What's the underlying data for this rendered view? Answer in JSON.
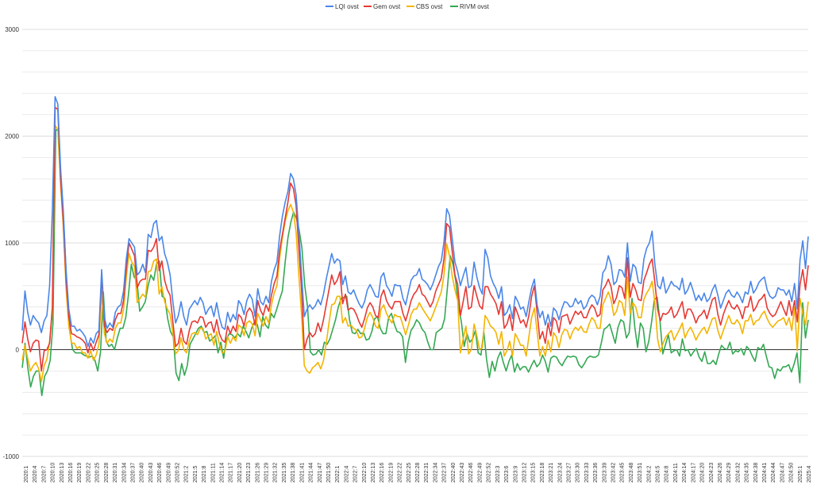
{
  "chart_data": {
    "type": "line",
    "title": "",
    "xlabel": "",
    "ylabel": "",
    "ylim": [
      -1000,
      3000
    ],
    "yticks": [
      -1000,
      0,
      1000,
      2000,
      3000
    ],
    "grid": true,
    "legend_position": "top-center",
    "x_tick_labels": [
      "2020:1",
      "2020:4",
      "2020:7",
      "2020:10",
      "2020:13",
      "2020:16",
      "2020:19",
      "2020:22",
      "2020:25",
      "2020:28",
      "2020:31",
      "2020:34",
      "2020:37",
      "2020:40",
      "2020:43",
      "2020:46",
      "2020:49",
      "2020:52",
      "2021:2",
      "2021:5",
      "2021:8",
      "2021:11",
      "2021:14",
      "2021:17",
      "2021:20",
      "2021:23",
      "2021:26",
      "2021:29",
      "2021:32",
      "2021:35",
      "2021:38",
      "2021:41",
      "2021:44",
      "2021:47",
      "2021:50",
      "2022:1",
      "2022:4",
      "2022:7",
      "2022:10",
      "2022:13",
      "2022:16",
      "2022:19",
      "2022:22",
      "2022:25",
      "2022:28",
      "2022:31",
      "2022:34",
      "2022:37",
      "2022:40",
      "2022:43",
      "2022:46",
      "2022:49",
      "2022:52",
      "2023:3",
      "2023:6",
      "2023:9",
      "2023:12",
      "2023:15",
      "2023:18",
      "2023:21",
      "2023:24",
      "2023:27",
      "2023:30",
      "2023:33",
      "2023:36",
      "2023:39",
      "2023:42",
      "2023:45",
      "2023:48",
      "2023:51",
      "2024:2",
      "2024:5",
      "2024:8",
      "2024:11",
      "2024:14",
      "2024:17",
      "2024:20",
      "2024:23",
      "2024:26",
      "2024:29",
      "2024:32",
      "2024:35",
      "2024:38",
      "2024:41",
      "2024:44",
      "2024:47",
      "2024:50",
      "2025:1",
      "2025:4"
    ],
    "series": [
      {
        "name": "LQI ovst",
        "color": "#4a86e8",
        "values": [
          180,
          550,
          350,
          230,
          320,
          280,
          250,
          160,
          270,
          320,
          600,
          1300,
          2370,
          2300,
          1700,
          1300,
          750,
          380,
          220,
          220,
          175,
          190,
          160,
          120,
          30,
          110,
          60,
          150,
          180,
          750,
          300,
          200,
          250,
          210,
          350,
          400,
          420,
          550,
          850,
          1040,
          1000,
          960,
          700,
          730,
          800,
          720,
          1080,
          1050,
          1180,
          1210,
          1020,
          1060,
          900,
          820,
          700,
          450,
          250,
          320,
          450,
          310,
          230,
          380,
          420,
          460,
          420,
          490,
          440,
          330,
          380,
          410,
          310,
          440,
          300,
          210,
          190,
          350,
          260,
          330,
          280,
          460,
          420,
          330,
          460,
          520,
          470,
          310,
          570,
          450,
          420,
          500,
          440,
          640,
          750,
          820,
          1070,
          1250,
          1380,
          1480,
          1650,
          1600,
          1450,
          1100,
          700,
          310,
          380,
          420,
          380,
          410,
          470,
          420,
          520,
          660,
          780,
          900,
          810,
          850,
          830,
          610,
          690,
          540,
          520,
          560,
          490,
          430,
          390,
          450,
          560,
          610,
          560,
          500,
          490,
          680,
          720,
          600,
          560,
          500,
          610,
          600,
          600,
          480,
          420,
          540,
          650,
          690,
          700,
          760,
          660,
          640,
          610,
          560,
          620,
          700,
          780,
          830,
          1010,
          1320,
          1260,
          1040,
          820,
          730,
          600,
          690,
          770,
          580,
          600,
          820,
          680,
          580,
          520,
          940,
          860,
          690,
          620,
          570,
          480,
          590,
          320,
          350,
          420,
          290,
          500,
          450,
          380,
          400,
          310,
          450,
          580,
          660,
          420,
          300,
          360,
          230,
          330,
          220,
          390,
          360,
          280,
          380,
          450,
          440,
          400,
          410,
          480,
          430,
          460,
          380,
          410,
          480,
          510,
          490,
          420,
          500,
          720,
          760,
          880,
          800,
          610,
          640,
          750,
          740,
          680,
          1000,
          640,
          800,
          770,
          630,
          620,
          850,
          950,
          1000,
          1110,
          800,
          600,
          570,
          680,
          530,
          580,
          640,
          600,
          590,
          560,
          670,
          520,
          560,
          630,
          550,
          460,
          510,
          460,
          530,
          450,
          480,
          560,
          610,
          510,
          390,
          460,
          530,
          560,
          510,
          490,
          540,
          500,
          440,
          540,
          520,
          640,
          530,
          570,
          630,
          660,
          680,
          560,
          500,
          480,
          500,
          580,
          560,
          560,
          510,
          560,
          450,
          620,
          380,
          840,
          1020,
          760,
          1060
        ]
      },
      {
        "name": "Gem ovst",
        "color": "#e53935",
        "values": [
          60,
          260,
          100,
          -20,
          60,
          90,
          80,
          -200,
          -10,
          0,
          60,
          400,
          2270,
          2250,
          1600,
          1200,
          650,
          310,
          150,
          140,
          120,
          110,
          90,
          60,
          -30,
          60,
          -10,
          70,
          140,
          700,
          220,
          160,
          200,
          180,
          280,
          340,
          340,
          460,
          760,
          1000,
          940,
          880,
          580,
          640,
          660,
          660,
          930,
          920,
          960,
          1040,
          740,
          830,
          650,
          560,
          510,
          260,
          30,
          60,
          200,
          80,
          50,
          180,
          260,
          270,
          250,
          310,
          300,
          210,
          250,
          260,
          160,
          280,
          150,
          90,
          70,
          220,
          150,
          220,
          170,
          330,
          300,
          220,
          350,
          390,
          350,
          230,
          460,
          370,
          320,
          420,
          360,
          510,
          620,
          690,
          930,
          1080,
          1230,
          1380,
          1560,
          1510,
          1350,
          950,
          560,
          0,
          100,
          160,
          120,
          150,
          250,
          170,
          280,
          420,
          560,
          700,
          610,
          650,
          730,
          430,
          520,
          370,
          390,
          380,
          330,
          260,
          210,
          290,
          390,
          440,
          400,
          320,
          300,
          500,
          560,
          460,
          410,
          380,
          450,
          450,
          450,
          340,
          270,
          360,
          460,
          520,
          550,
          610,
          520,
          500,
          450,
          400,
          450,
          550,
          610,
          670,
          850,
          1180,
          1150,
          920,
          700,
          610,
          320,
          450,
          590,
          380,
          400,
          600,
          500,
          410,
          380,
          590,
          590,
          520,
          480,
          430,
          330,
          450,
          200,
          240,
          330,
          180,
          400,
          330,
          250,
          280,
          210,
          320,
          500,
          600,
          350,
          100,
          170,
          60,
          250,
          130,
          300,
          270,
          160,
          310,
          320,
          330,
          240,
          300,
          360,
          330,
          360,
          300,
          300,
          370,
          420,
          390,
          310,
          330,
          560,
          600,
          660,
          590,
          430,
          490,
          600,
          580,
          480,
          860,
          490,
          620,
          560,
          470,
          460,
          650,
          720,
          800,
          850,
          630,
          380,
          270,
          340,
          330,
          350,
          400,
          300,
          330,
          390,
          450,
          290,
          380,
          380,
          330,
          250,
          310,
          330,
          370,
          290,
          380,
          470,
          490,
          330,
          230,
          330,
          400,
          460,
          400,
          380,
          420,
          370,
          290,
          400,
          400,
          500,
          360,
          400,
          460,
          480,
          520,
          390,
          340,
          310,
          330,
          390,
          450,
          380,
          320,
          460,
          320,
          460,
          260,
          610,
          750,
          560,
          790
        ]
      },
      {
        "name": "CBS ovst",
        "color": "#f4b400",
        "values": [
          -100,
          40,
          -80,
          -200,
          -150,
          -120,
          -180,
          -300,
          -150,
          -90,
          80,
          350,
          2100,
          2060,
          1550,
          1150,
          580,
          220,
          60,
          60,
          10,
          30,
          -30,
          -30,
          -80,
          -10,
          -100,
          -50,
          50,
          550,
          150,
          60,
          100,
          70,
          200,
          250,
          250,
          380,
          680,
          900,
          820,
          780,
          440,
          480,
          520,
          490,
          730,
          740,
          830,
          850,
          520,
          590,
          450,
          380,
          330,
          160,
          -40,
          -10,
          110,
          0,
          -30,
          80,
          150,
          160,
          140,
          200,
          200,
          100,
          130,
          150,
          40,
          170,
          50,
          -30,
          -20,
          120,
          60,
          120,
          80,
          230,
          210,
          130,
          250,
          270,
          240,
          130,
          340,
          280,
          220,
          310,
          250,
          420,
          530,
          600,
          860,
          1050,
          1200,
          1300,
          1360,
          1290,
          1100,
          700,
          320,
          -150,
          -200,
          -220,
          -170,
          -150,
          -120,
          -180,
          -100,
          60,
          250,
          420,
          430,
          500,
          500,
          250,
          300,
          220,
          230,
          200,
          180,
          110,
          120,
          200,
          300,
          350,
          300,
          220,
          200,
          380,
          420,
          340,
          290,
          250,
          330,
          310,
          310,
          230,
          140,
          230,
          330,
          380,
          380,
          440,
          390,
          350,
          310,
          270,
          330,
          400,
          470,
          540,
          700,
          990,
          880,
          690,
          560,
          460,
          -30,
          100,
          220,
          -40,
          0,
          240,
          130,
          0,
          20,
          320,
          280,
          220,
          200,
          160,
          50,
          170,
          -60,
          -10,
          80,
          -60,
          150,
          100,
          40,
          40,
          -60,
          120,
          300,
          390,
          170,
          -60,
          30,
          -60,
          90,
          -20,
          160,
          120,
          20,
          140,
          190,
          180,
          100,
          170,
          210,
          180,
          220,
          170,
          160,
          240,
          300,
          270,
          200,
          200,
          420,
          480,
          540,
          470,
          320,
          360,
          460,
          440,
          320,
          680,
          340,
          440,
          400,
          300,
          300,
          470,
          530,
          570,
          640,
          440,
          100,
          -20,
          60,
          120,
          150,
          180,
          90,
          140,
          190,
          250,
          110,
          170,
          210,
          160,
          90,
          140,
          180,
          210,
          150,
          220,
          290,
          300,
          180,
          100,
          180,
          250,
          320,
          250,
          240,
          280,
          240,
          150,
          270,
          270,
          330,
          230,
          270,
          280,
          330,
          360,
          290,
          240,
          210,
          240,
          270,
          280,
          300,
          230,
          300,
          180,
          400,
          -10,
          480,
          340,
          230,
          450
        ]
      },
      {
        "name": "RIVM ovst",
        "color": "#34a853",
        "values": [
          -170,
          60,
          -170,
          -350,
          -250,
          -200,
          -200,
          -430,
          -250,
          -200,
          -100,
          250,
          2060,
          2050,
          1500,
          1100,
          550,
          170,
          0,
          -30,
          -30,
          -30,
          -50,
          -60,
          -70,
          -60,
          -100,
          -200,
          -20,
          540,
          80,
          30,
          50,
          0,
          110,
          200,
          200,
          300,
          520,
          800,
          680,
          650,
          360,
          400,
          450,
          600,
          700,
          650,
          800,
          830,
          500,
          480,
          290,
          170,
          120,
          -220,
          -290,
          -130,
          -240,
          -150,
          50,
          100,
          150,
          200,
          220,
          160,
          170,
          80,
          100,
          130,
          -30,
          70,
          -80,
          100,
          150,
          140,
          110,
          150,
          120,
          220,
          170,
          110,
          200,
          260,
          240,
          120,
          310,
          230,
          200,
          340,
          300,
          380,
          470,
          550,
          820,
          1050,
          1190,
          1290,
          1230,
          1120,
          950,
          600,
          400,
          -20,
          -50,
          -40,
          0,
          -50,
          70,
          50,
          100,
          190,
          280,
          400,
          480,
          490,
          500,
          280,
          160,
          150,
          190,
          150,
          160,
          90,
          100,
          170,
          290,
          310,
          200,
          150,
          150,
          300,
          340,
          240,
          170,
          160,
          120,
          -120,
          70,
          180,
          220,
          280,
          250,
          190,
          160,
          70,
          0,
          0,
          160,
          180,
          200,
          290,
          580,
          880,
          800,
          640,
          400,
          260,
          30,
          150,
          70,
          100,
          180,
          -30,
          -50,
          170,
          -90,
          -260,
          -110,
          -200,
          -80,
          -20,
          -120,
          -200,
          -110,
          -50,
          -210,
          -130,
          -190,
          -160,
          -160,
          -210,
          -150,
          -100,
          -160,
          -130,
          -50,
          -110,
          -210,
          -80,
          -60,
          -70,
          -120,
          -150,
          -100,
          -60,
          -70,
          -60,
          -70,
          -140,
          -170,
          -130,
          -80,
          -60,
          -70,
          -70,
          -50,
          60,
          190,
          210,
          240,
          150,
          60,
          210,
          280,
          260,
          110,
          160,
          480,
          210,
          20,
          250,
          200,
          -20,
          80,
          260,
          470,
          490,
          270,
          -40,
          50,
          140,
          -30,
          -10,
          0,
          -60,
          100,
          -10,
          0,
          -60,
          -20,
          10,
          -70,
          -110,
          -20,
          -130,
          -130,
          -100,
          -140,
          -40,
          40,
          10,
          0,
          70,
          -40,
          -10,
          -20,
          10,
          -50,
          30,
          0,
          -60,
          -110,
          20,
          0,
          50,
          -60,
          -160,
          -170,
          -270,
          -180,
          -200,
          -160,
          -160,
          -140,
          -210,
          -130,
          -30,
          -310,
          440,
          110,
          280
        ]
      }
    ]
  }
}
